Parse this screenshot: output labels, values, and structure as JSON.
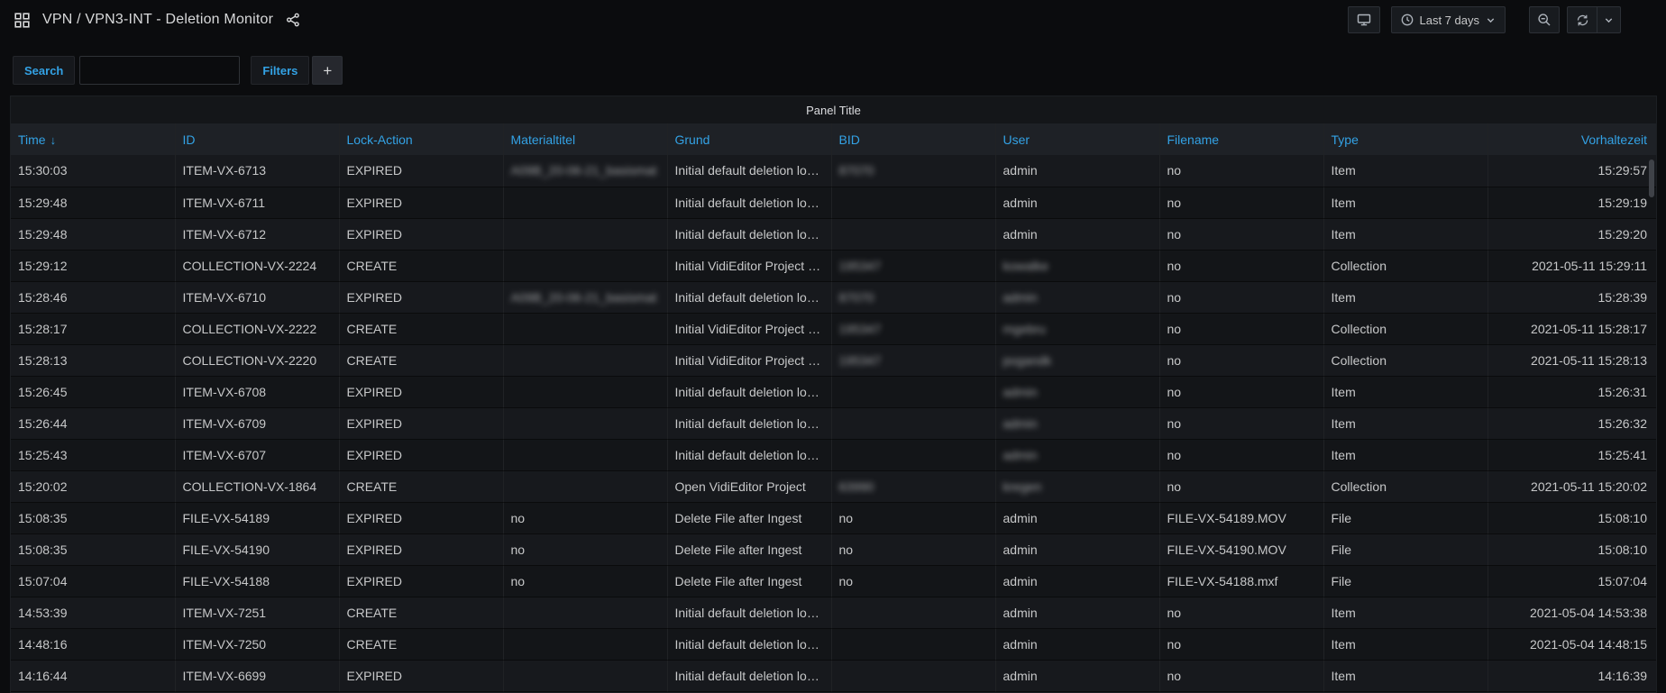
{
  "topbar": {
    "title": "VPN / VPN3-INT - Deletion Monitor",
    "time_range_label": "Last 7 days"
  },
  "filter_bar": {
    "search_label": "Search",
    "search_value": "",
    "filters_label": "Filters",
    "add_button_label": "+"
  },
  "panel": {
    "title": "Panel Title"
  },
  "colors": {
    "accent_blue": "#33a2e5",
    "panel_background": "#141619",
    "header_row_background": "#1e2126",
    "page_background": "#0b0c0e",
    "text_primary": "#c7c8c9"
  },
  "table": {
    "sort_indicator": "↓",
    "columns": [
      {
        "key": "time",
        "label": "Time",
        "sort": "desc"
      },
      {
        "key": "id",
        "label": "ID"
      },
      {
        "key": "lock_action",
        "label": "Lock-Action"
      },
      {
        "key": "materialtitel",
        "label": "Materialtitel"
      },
      {
        "key": "grund",
        "label": "Grund"
      },
      {
        "key": "bid",
        "label": "BID"
      },
      {
        "key": "user",
        "label": "User"
      },
      {
        "key": "filename",
        "label": "Filename"
      },
      {
        "key": "type",
        "label": "Type"
      },
      {
        "key": "vorhaltezeit",
        "label": "Vorhaltezeit",
        "align": "right"
      }
    ],
    "rows": [
      [
        "15:30:03",
        "ITEM-VX-6713",
        "EXPIRED",
        {
          "t": "A09B_20-06-21_basismat",
          "blur": true
        },
        "Initial default deletion loc…",
        {
          "t": "87070",
          "blur": true
        },
        "admin",
        "no",
        "Item",
        "15:29:57"
      ],
      [
        "15:29:48",
        "ITEM-VX-6711",
        "EXPIRED",
        "",
        "Initial default deletion loc…",
        "",
        "admin",
        "no",
        "Item",
        "15:29:19"
      ],
      [
        "15:29:48",
        "ITEM-VX-6712",
        "EXPIRED",
        "",
        "Initial default deletion loc…",
        "",
        "admin",
        "no",
        "Item",
        "15:29:20"
      ],
      [
        "15:29:12",
        "COLLECTION-VX-2224",
        "CREATE",
        "",
        "Initial VidiEditor Project cr…",
        {
          "t": "195347",
          "blur": true
        },
        {
          "t": "kowalke",
          "blur": true
        },
        "no",
        "Collection",
        "2021-05-11 15:29:11"
      ],
      [
        "15:28:46",
        "ITEM-VX-6710",
        "EXPIRED",
        {
          "t": "A09B_20-06-21_basismat",
          "blur": true
        },
        "Initial default deletion loc…",
        {
          "t": "87070",
          "blur": true
        },
        {
          "t": "admin",
          "blur": true
        },
        "no",
        "Item",
        "15:28:39"
      ],
      [
        "15:28:17",
        "COLLECTION-VX-2222",
        "CREATE",
        "",
        "Initial VidiEditor Project cr…",
        {
          "t": "195347",
          "blur": true
        },
        {
          "t": "mgebru",
          "blur": true
        },
        "no",
        "Collection",
        "2021-05-11 15:28:17"
      ],
      [
        "15:28:13",
        "COLLECTION-VX-2220",
        "CREATE",
        "",
        "Initial VidiEditor Project cr…",
        {
          "t": "195347",
          "blur": true
        },
        {
          "t": "pogandk",
          "blur": true
        },
        "no",
        "Collection",
        "2021-05-11 15:28:13"
      ],
      [
        "15:26:45",
        "ITEM-VX-6708",
        "EXPIRED",
        "",
        "Initial default deletion loc…",
        "",
        {
          "t": "admin",
          "blur": true
        },
        "no",
        "Item",
        "15:26:31"
      ],
      [
        "15:26:44",
        "ITEM-VX-6709",
        "EXPIRED",
        "",
        "Initial default deletion loc…",
        "",
        {
          "t": "admin",
          "blur": true
        },
        "no",
        "Item",
        "15:26:32"
      ],
      [
        "15:25:43",
        "ITEM-VX-6707",
        "EXPIRED",
        "",
        "Initial default deletion loc…",
        "",
        {
          "t": "admin",
          "blur": true
        },
        "no",
        "Item",
        "15:25:41"
      ],
      [
        "15:20:02",
        "COLLECTION-VX-1864",
        "CREATE",
        "",
        "Open VidiEditor Project",
        {
          "t": "63990",
          "blur": true
        },
        {
          "t": "kregen",
          "blur": true
        },
        "no",
        "Collection",
        "2021-05-11 15:20:02"
      ],
      [
        "15:08:35",
        "FILE-VX-54189",
        "EXPIRED",
        "no",
        "Delete File after Ingest",
        "no",
        "admin",
        "FILE-VX-54189.MOV",
        "File",
        "15:08:10"
      ],
      [
        "15:08:35",
        "FILE-VX-54190",
        "EXPIRED",
        "no",
        "Delete File after Ingest",
        "no",
        "admin",
        "FILE-VX-54190.MOV",
        "File",
        "15:08:10"
      ],
      [
        "15:07:04",
        "FILE-VX-54188",
        "EXPIRED",
        "no",
        "Delete File after Ingest",
        "no",
        "admin",
        "FILE-VX-54188.mxf",
        "File",
        "15:07:04"
      ],
      [
        "14:53:39",
        "ITEM-VX-7251",
        "CREATE",
        "",
        "Initial default deletion loc…",
        "",
        "admin",
        "no",
        "Item",
        "2021-05-04 14:53:38"
      ],
      [
        "14:48:16",
        "ITEM-VX-7250",
        "CREATE",
        "",
        "Initial default deletion loc…",
        "",
        "admin",
        "no",
        "Item",
        "2021-05-04 14:48:15"
      ],
      [
        "14:16:44",
        "ITEM-VX-6699",
        "EXPIRED",
        "",
        "Initial default deletion loc…",
        "",
        "admin",
        "no",
        "Item",
        "14:16:39"
      ]
    ]
  }
}
